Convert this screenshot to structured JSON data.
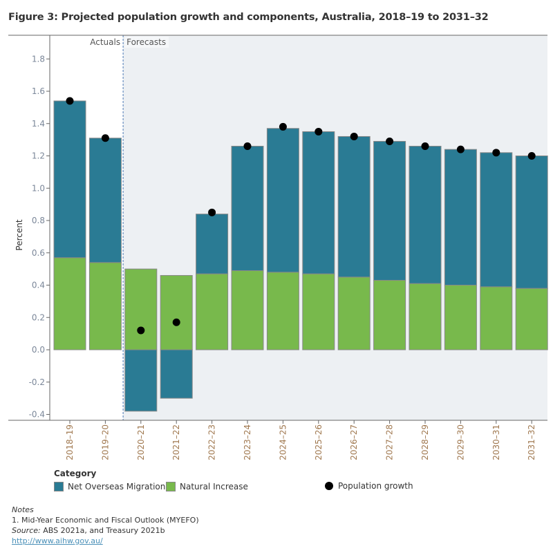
{
  "title": "Figure 3: Projected population growth and components, Australia, 2018–19 to 2031–32",
  "chart_data": {
    "type": "bar",
    "stacked": true,
    "categories": [
      "2018–19",
      "2019–20",
      "2020–21",
      "2021–22",
      "2022–23",
      "2023–24",
      "2024–25",
      "2025–26",
      "2026–27",
      "2027–28",
      "2028–29",
      "2029–30",
      "2030–31",
      "2031–32"
    ],
    "series": [
      {
        "name": "Net Overseas Migration",
        "color": "#2a7b94",
        "values": [
          0.97,
          0.77,
          -0.38,
          -0.3,
          0.37,
          0.77,
          0.89,
          0.88,
          0.87,
          0.86,
          0.85,
          0.84,
          0.83,
          0.82
        ]
      },
      {
        "name": "Natural Increase",
        "color": "#78b94c",
        "values": [
          0.57,
          0.54,
          0.5,
          0.46,
          0.47,
          0.49,
          0.48,
          0.47,
          0.45,
          0.43,
          0.41,
          0.4,
          0.39,
          0.38
        ]
      }
    ],
    "points": {
      "name": "Population growth",
      "color": "#000000",
      "values": [
        1.54,
        1.31,
        0.12,
        0.17,
        0.85,
        1.26,
        1.38,
        1.35,
        1.32,
        1.29,
        1.26,
        1.24,
        1.22,
        1.2
      ]
    },
    "ylabel": "Percent",
    "xlabel": "",
    "ylim": [
      -0.44,
      1.94
    ],
    "yticks": [
      "-0.4",
      "-0.2",
      "0.0",
      "0.2",
      "0.4",
      "0.6",
      "0.8",
      "1.0",
      "1.2",
      "1.4",
      "1.6",
      "1.8"
    ],
    "annotations": {
      "actuals": "Actuals",
      "forecasts": "Forecasts"
    },
    "forecast_start_category": "2020–21",
    "legend_title": "Category",
    "legend_position": "bottom",
    "grid": false
  },
  "notes": {
    "heading": "Notes",
    "line1": "1. Mid-Year Economic and Fiscal Outlook (MYEFO)",
    "source_label": "Source:",
    "source_text": " ABS 2021a, and Treasury 2021b",
    "link": "http://www.aihw.gov.au/"
  }
}
